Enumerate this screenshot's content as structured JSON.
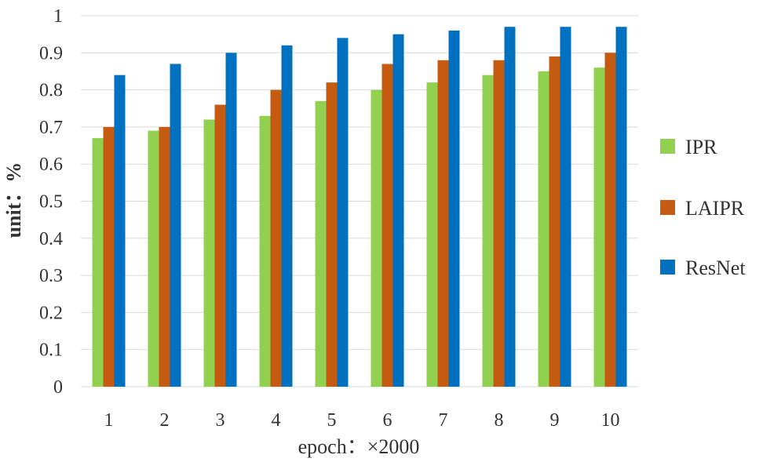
{
  "chart_data": {
    "type": "bar",
    "xlabel": "epoch：×2000",
    "ylabel": "unit：%",
    "categories": [
      "1",
      "2",
      "3",
      "4",
      "5",
      "6",
      "7",
      "8",
      "9",
      "10"
    ],
    "yticks": [
      "0",
      "0.1",
      "0.2",
      "0.3",
      "0.4",
      "0.5",
      "0.6",
      "0.7",
      "0.8",
      "0.9",
      "1"
    ],
    "ylim": [
      0,
      1
    ],
    "grid": true,
    "legend_position": "right",
    "series": [
      {
        "name": "IPR",
        "color": "#92d050",
        "values": [
          0.67,
          0.69,
          0.72,
          0.73,
          0.77,
          0.8,
          0.82,
          0.84,
          0.85,
          0.86
        ]
      },
      {
        "name": "LAIPR",
        "color": "#c55a11",
        "values": [
          0.7,
          0.7,
          0.76,
          0.8,
          0.82,
          0.87,
          0.88,
          0.88,
          0.89,
          0.9
        ]
      },
      {
        "name": "ResNet",
        "color": "#0070c0",
        "values": [
          0.84,
          0.87,
          0.9,
          0.92,
          0.94,
          0.95,
          0.96,
          0.97,
          0.97,
          0.97
        ]
      }
    ]
  }
}
